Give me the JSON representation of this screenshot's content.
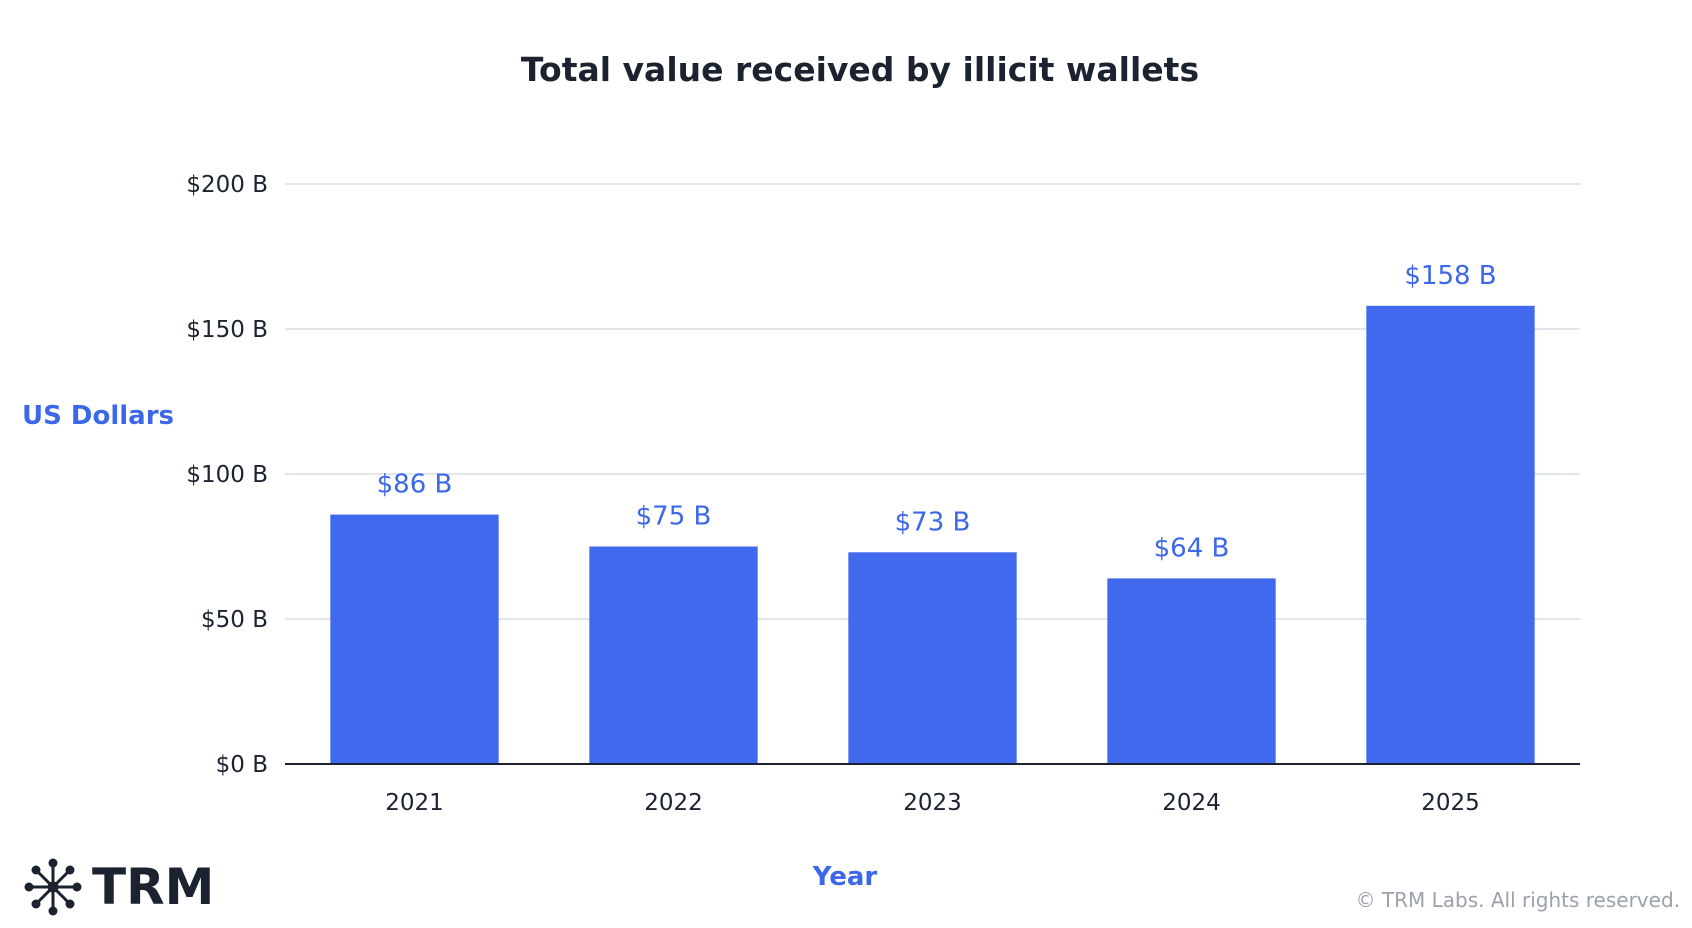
{
  "colors": {
    "bar": "#4169ED",
    "accent_text": "#3C67E8",
    "grid": "#d9dde4",
    "axis": "#1b2230",
    "text": "#1b2230",
    "muted": "#9ba1ab"
  },
  "chart_data": {
    "type": "bar",
    "title": "Total value received by illicit wallets",
    "xlabel": "Year",
    "ylabel": "US Dollars",
    "categories": [
      "2021",
      "2022",
      "2023",
      "2024",
      "2025"
    ],
    "values": [
      86,
      75,
      73,
      64,
      158
    ],
    "value_labels": [
      "$86 B",
      "$75 B",
      "$73 B",
      "$64 B",
      "$158 B"
    ],
    "ylim": [
      0,
      200
    ],
    "yticks": [
      0,
      50,
      100,
      150,
      200
    ],
    "ytick_labels": [
      "$0 B",
      "$50 B",
      "$100 B",
      "$150 B",
      "$200 B"
    ],
    "grid": true,
    "legend": "none"
  },
  "branding": {
    "logo_text": "TRM",
    "logo_icon": "network-node-icon",
    "copyright": "© TRM Labs. All rights reserved."
  }
}
